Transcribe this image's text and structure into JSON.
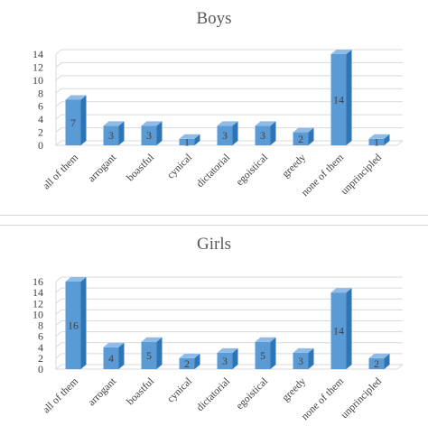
{
  "charts_meta": {
    "colors": {
      "front": "#5B9BD5",
      "top": "#8FBCE6",
      "side": "#2E75B6",
      "grid": "#d9d9d9",
      "text": "#404040"
    }
  },
  "chart_data": [
    {
      "type": "bar",
      "title": "Boys",
      "categories": [
        "all of them",
        "arrogant",
        "boastful",
        "cynical",
        "dictatorial",
        "egoistical",
        "greedy",
        "none of them",
        "unprincipled"
      ],
      "values": [
        7,
        3,
        3,
        1,
        3,
        3,
        2,
        14,
        1
      ],
      "value_labels": [
        "7",
        "3",
        "3",
        "1",
        "3",
        "3",
        "2",
        "14",
        "1"
      ],
      "yticks": [
        "0",
        "2",
        "4",
        "6",
        "8",
        "10",
        "12",
        "14"
      ],
      "ylim": [
        0,
        14
      ],
      "xlabel": "",
      "ylabel": "",
      "grid": true
    },
    {
      "type": "bar",
      "title": "Girls",
      "categories": [
        "all of them",
        "arrogant",
        "boastful",
        "cynical",
        "dictatorial",
        "egoistical",
        "greedy",
        "none of them",
        "unprincipled"
      ],
      "values": [
        16,
        4,
        5,
        2,
        3,
        5,
        3,
        14,
        2
      ],
      "value_labels": [
        "16",
        "4",
        "5",
        "2",
        "3",
        "5",
        "3",
        "14",
        "2"
      ],
      "yticks": [
        "0",
        "2",
        "4",
        "6",
        "8",
        "10",
        "12",
        "14",
        "16"
      ],
      "ylim": [
        0,
        16
      ],
      "xlabel": "",
      "ylabel": "",
      "grid": true
    }
  ]
}
